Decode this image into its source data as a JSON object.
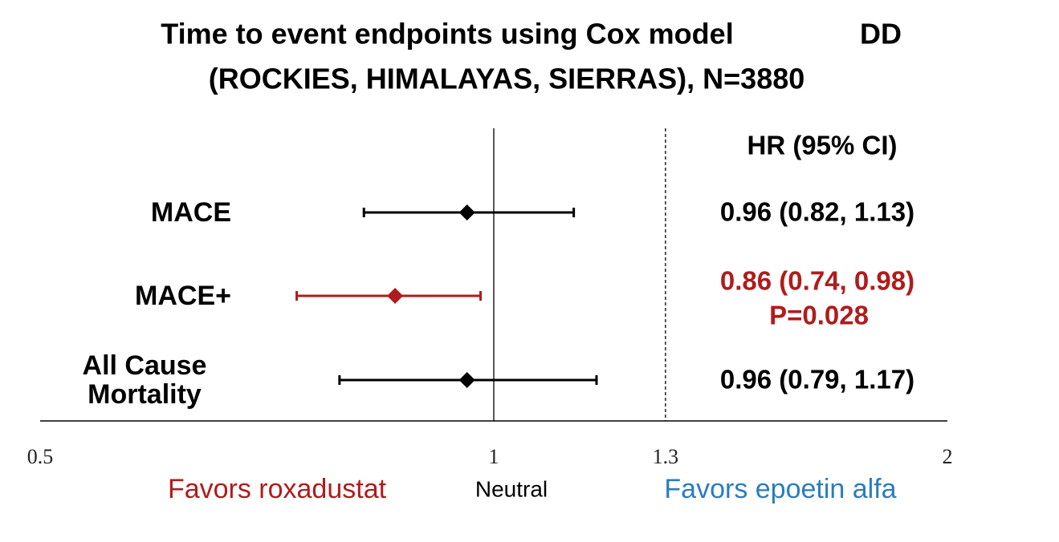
{
  "chart_data": {
    "type": "forest",
    "title": "Time to event endpoints using Cox model",
    "title_note": "DD",
    "subtitle": "(ROCKIES, HIMALAYAS, SIERRAS), N=3880",
    "column_header": "HR (95% CI)",
    "categories": [
      "MACE",
      "MACE+",
      "All Cause Mortality"
    ],
    "series": [
      {
        "values": [
          0.96,
          0.86,
          0.96
        ],
        "lower": [
          0.82,
          0.74,
          0.79
        ],
        "upper": [
          1.13,
          0.98,
          1.17
        ],
        "value_labels": [
          "0.96 (0.82, 1.13)",
          "0.86 (0.74, 0.98)",
          "0.96 (0.79, 1.17)"
        ],
        "colors": [
          "#000000",
          "#b01c1c",
          "#000000"
        ]
      }
    ],
    "annotations": [
      {
        "category": 1,
        "text": "P=0.028",
        "color": "#b01c1c"
      }
    ],
    "xlim": [
      0.5,
      2
    ],
    "xticks": [
      0.5,
      1,
      1.3,
      2
    ],
    "xtick_lines": [
      "none",
      "solid",
      "dashed",
      "none"
    ],
    "log_x": true,
    "footer_labels": [
      {
        "text": "Favors roxadustat",
        "color": "#b01c1c"
      },
      {
        "text": "Neutral",
        "color": "#000000"
      },
      {
        "text": "Favors epoetin alfa",
        "color": "#2a7dc0"
      }
    ]
  }
}
